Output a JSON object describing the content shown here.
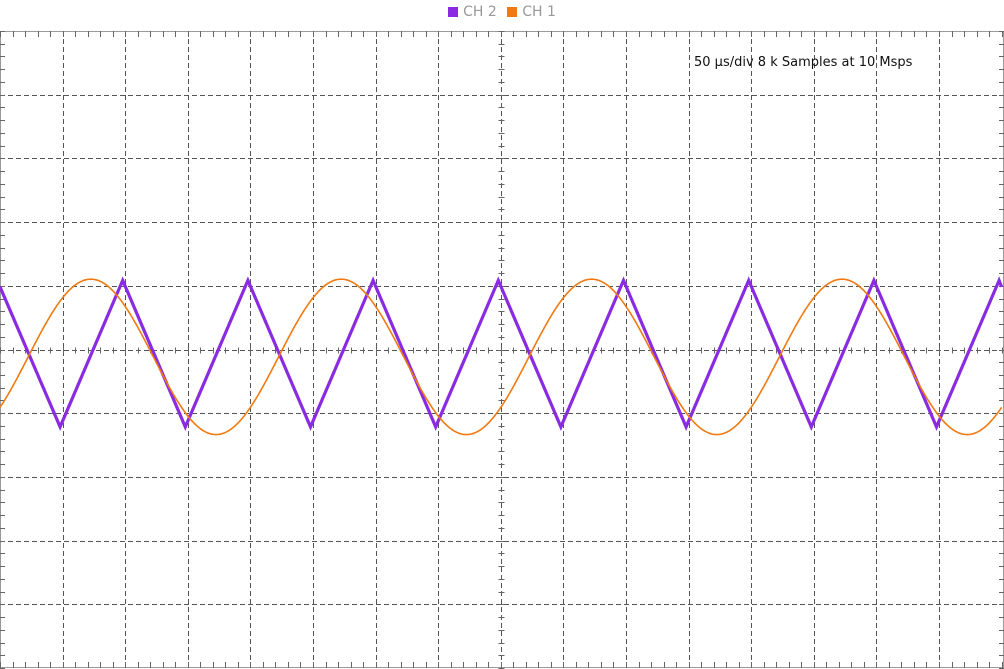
{
  "chart_data": {
    "type": "line",
    "title": "",
    "xlabel": "",
    "ylabel": "",
    "annotation": "50 µs/div 8 k Samples at 10 Msps",
    "x_divisions": 16,
    "y_divisions": 10,
    "x_unit": "div",
    "y_unit": "div",
    "xlim": [
      0,
      16
    ],
    "ylim": [
      -5,
      5
    ],
    "grid": true,
    "legend_position": "top-center",
    "series": [
      {
        "name": "CH 2",
        "color": "#8a2be2",
        "shape": "triangle",
        "x": [
          0.0,
          0.96,
          1.96,
          2.96,
          3.96,
          4.96,
          5.96,
          6.96,
          7.96,
          8.96,
          9.96,
          10.96,
          11.96,
          12.96,
          13.96,
          14.96,
          15.96,
          16.0
        ],
        "y": [
          1.0,
          -1.2,
          1.1,
          -1.2,
          1.1,
          -1.2,
          1.1,
          -1.2,
          1.1,
          -1.2,
          1.1,
          -1.2,
          1.1,
          -1.2,
          1.1,
          -1.2,
          1.1,
          1.0
        ]
      },
      {
        "name": "CH 1",
        "color": "#f07a10",
        "shape": "sine",
        "amplitude": 1.22,
        "offset": -0.1,
        "period_div": 4.0,
        "phase_peak_div": 1.45,
        "x": [
          0.0,
          0.45,
          1.45,
          2.45,
          3.45,
          4.45,
          5.45,
          6.45,
          7.45,
          8.45,
          9.45,
          10.45,
          11.45,
          12.45,
          13.45,
          14.45,
          15.45,
          16.0
        ],
        "y": [
          -0.83,
          -0.1,
          1.12,
          -0.1,
          -1.32,
          -0.1,
          1.12,
          -0.1,
          -1.32,
          -0.1,
          1.12,
          -0.1,
          -1.32,
          -0.1,
          1.12,
          -0.1,
          -1.32,
          -0.83
        ]
      }
    ]
  },
  "legend": [
    {
      "label": "CH 2",
      "color": "#8a2be2"
    },
    {
      "label": "CH 1",
      "color": "#f07a10"
    }
  ]
}
